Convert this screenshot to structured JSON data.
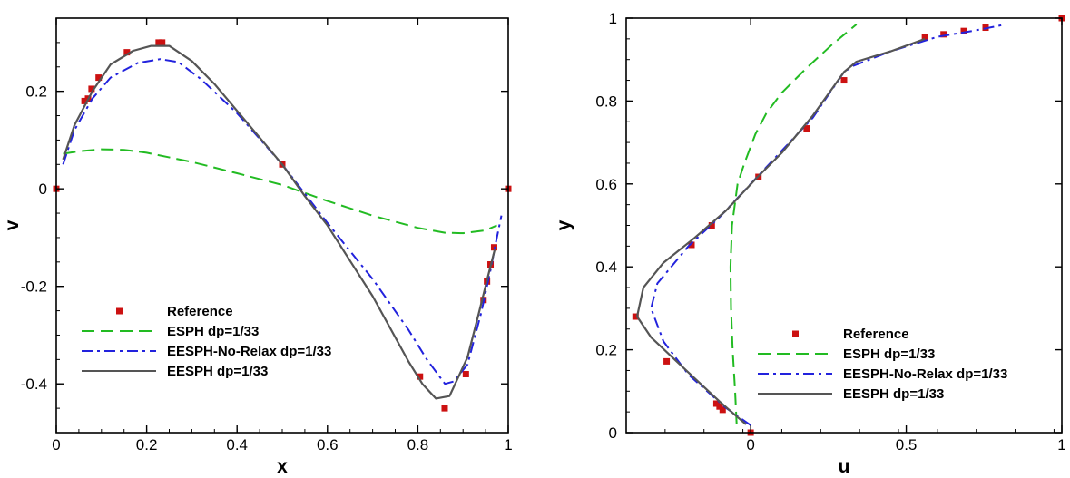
{
  "chart_data": [
    {
      "type": "line",
      "xlabel": "x",
      "ylabel": "v",
      "xlim": [
        0,
        1
      ],
      "ylim": [
        -0.5,
        0.35
      ],
      "xticks": [
        0,
        0.2,
        0.4,
        0.6,
        0.8,
        1
      ],
      "xtick_labels": [
        "0",
        "0.2",
        "0.4",
        "0.6",
        "0.8",
        "1"
      ],
      "yticks": [
        -0.4,
        -0.2,
        0,
        0.2
      ],
      "ytick_labels": [
        "-0.4",
        "-0.2",
        "0",
        "0.2"
      ],
      "legend_position": "bottom-left",
      "series": [
        {
          "name": "Reference",
          "style": "markers",
          "color": "#cc1111",
          "points": [
            [
              0,
              0
            ],
            [
              0.0625,
              0.18
            ],
            [
              0.0703,
              0.185
            ],
            [
              0.0781,
              0.205
            ],
            [
              0.0938,
              0.228
            ],
            [
              0.1563,
              0.28
            ],
            [
              0.2266,
              0.3
            ],
            [
              0.2344,
              0.3
            ],
            [
              0.5,
              0.05
            ],
            [
              0.8047,
              -0.385
            ],
            [
              0.8594,
              -0.45
            ],
            [
              0.9063,
              -0.38
            ],
            [
              0.9453,
              -0.228
            ],
            [
              0.9531,
              -0.19
            ],
            [
              0.9609,
              -0.155
            ],
            [
              0.9688,
              -0.12
            ],
            [
              1,
              0
            ]
          ]
        },
        {
          "name": "ESPH dp=1/33",
          "style": "dashed",
          "color": "#22bb22",
          "points": [
            [
              0.015,
              0.072
            ],
            [
              0.05,
              0.077
            ],
            [
              0.1,
              0.081
            ],
            [
              0.15,
              0.08
            ],
            [
              0.2,
              0.074
            ],
            [
              0.3,
              0.055
            ],
            [
              0.4,
              0.032
            ],
            [
              0.5,
              0.008
            ],
            [
              0.6,
              -0.025
            ],
            [
              0.7,
              -0.055
            ],
            [
              0.8,
              -0.08
            ],
            [
              0.86,
              -0.09
            ],
            [
              0.9,
              -0.091
            ],
            [
              0.95,
              -0.085
            ],
            [
              0.975,
              -0.075
            ]
          ]
        },
        {
          "name": "EESPH-No-Relax dp=1/33",
          "style": "dashdot",
          "color": "#2222dd",
          "points": [
            [
              0.015,
              0.05
            ],
            [
              0.04,
              0.12
            ],
            [
              0.08,
              0.185
            ],
            [
              0.12,
              0.228
            ],
            [
              0.18,
              0.258
            ],
            [
              0.23,
              0.266
            ],
            [
              0.27,
              0.26
            ],
            [
              0.32,
              0.225
            ],
            [
              0.4,
              0.155
            ],
            [
              0.5,
              0.05
            ],
            [
              0.55,
              -0.01
            ],
            [
              0.6,
              -0.07
            ],
            [
              0.7,
              -0.185
            ],
            [
              0.78,
              -0.29
            ],
            [
              0.82,
              -0.35
            ],
            [
              0.86,
              -0.4
            ],
            [
              0.88,
              -0.395
            ],
            [
              0.91,
              -0.36
            ],
            [
              0.94,
              -0.255
            ],
            [
              0.96,
              -0.17
            ],
            [
              0.975,
              -0.1
            ],
            [
              0.985,
              -0.055
            ]
          ]
        },
        {
          "name": "EESPH dp=1/33",
          "style": "solid",
          "color": "#555555",
          "points": [
            [
              0.015,
              0.06
            ],
            [
              0.04,
              0.13
            ],
            [
              0.08,
              0.2
            ],
            [
              0.12,
              0.255
            ],
            [
              0.17,
              0.283
            ],
            [
              0.21,
              0.293
            ],
            [
              0.25,
              0.293
            ],
            [
              0.3,
              0.262
            ],
            [
              0.35,
              0.215
            ],
            [
              0.4,
              0.16
            ],
            [
              0.45,
              0.105
            ],
            [
              0.5,
              0.05
            ],
            [
              0.55,
              -0.015
            ],
            [
              0.6,
              -0.075
            ],
            [
              0.7,
              -0.22
            ],
            [
              0.78,
              -0.355
            ],
            [
              0.81,
              -0.4
            ],
            [
              0.84,
              -0.43
            ],
            [
              0.87,
              -0.425
            ],
            [
              0.91,
              -0.345
            ],
            [
              0.935,
              -0.255
            ],
            [
              0.955,
              -0.18
            ],
            [
              0.97,
              -0.125
            ]
          ]
        }
      ]
    },
    {
      "type": "line",
      "xlabel": "u",
      "ylabel": "y",
      "xlim": [
        -0.4,
        1
      ],
      "ylim": [
        0,
        1
      ],
      "xticks": [
        0,
        0.5,
        1
      ],
      "xtick_labels": [
        "0",
        "0.5",
        "1"
      ],
      "yticks": [
        0,
        0.2,
        0.4,
        0.6,
        0.8,
        1
      ],
      "ytick_labels": [
        "0",
        "0.2",
        "0.4",
        "0.6",
        "0.8",
        "1"
      ],
      "legend_position": "bottom-right",
      "series": [
        {
          "name": "Reference",
          "style": "markers",
          "color": "#cc1111",
          "points": [
            [
              0,
              0
            ],
            [
              -0.09,
              0.055
            ],
            [
              -0.1,
              0.063
            ],
            [
              -0.11,
              0.07
            ],
            [
              -0.27,
              0.172
            ],
            [
              -0.37,
              0.28
            ],
            [
              -0.19,
              0.453
            ],
            [
              -0.125,
              0.5
            ],
            [
              0.025,
              0.617
            ],
            [
              0.18,
              0.734
            ],
            [
              0.3,
              0.85
            ],
            [
              0.56,
              0.953
            ],
            [
              0.62,
              0.961
            ],
            [
              0.685,
              0.969
            ],
            [
              0.755,
              0.977
            ],
            [
              1,
              1
            ]
          ]
        },
        {
          "name": "ESPH dp=1/33",
          "style": "dashed",
          "color": "#22bb22",
          "points": [
            [
              -0.045,
              0.02
            ],
            [
              -0.05,
              0.1
            ],
            [
              -0.058,
              0.2
            ],
            [
              -0.063,
              0.3
            ],
            [
              -0.065,
              0.4
            ],
            [
              -0.06,
              0.5
            ],
            [
              -0.042,
              0.6
            ],
            [
              -0.02,
              0.65
            ],
            [
              0.015,
              0.72
            ],
            [
              0.05,
              0.77
            ],
            [
              0.1,
              0.82
            ],
            [
              0.18,
              0.88
            ],
            [
              0.26,
              0.935
            ],
            [
              0.34,
              0.985
            ]
          ]
        },
        {
          "name": "EESPH-No-Relax dp=1/33",
          "style": "dashdot",
          "color": "#2222dd",
          "points": [
            [
              0.0,
              0.018
            ],
            [
              -0.08,
              0.06
            ],
            [
              -0.2,
              0.14
            ],
            [
              -0.28,
              0.22
            ],
            [
              -0.32,
              0.3
            ],
            [
              -0.3,
              0.36
            ],
            [
              -0.2,
              0.45
            ],
            [
              -0.1,
              0.52
            ],
            [
              0.0,
              0.6
            ],
            [
              0.1,
              0.68
            ],
            [
              0.2,
              0.76
            ],
            [
              0.3,
              0.87
            ],
            [
              0.33,
              0.885
            ],
            [
              0.45,
              0.92
            ],
            [
              0.6,
              0.955
            ],
            [
              0.72,
              0.97
            ],
            [
              0.82,
              0.985
            ]
          ]
        },
        {
          "name": "EESPH dp=1/33",
          "style": "solid",
          "color": "#555555",
          "points": [
            [
              -0.015,
              0.02
            ],
            [
              -0.1,
              0.075
            ],
            [
              -0.2,
              0.145
            ],
            [
              -0.32,
              0.23
            ],
            [
              -0.365,
              0.28
            ],
            [
              -0.345,
              0.35
            ],
            [
              -0.28,
              0.41
            ],
            [
              -0.18,
              0.47
            ],
            [
              -0.08,
              0.535
            ],
            [
              0.02,
              0.615
            ],
            [
              0.1,
              0.675
            ],
            [
              0.2,
              0.765
            ],
            [
              0.3,
              0.87
            ],
            [
              0.34,
              0.895
            ],
            [
              0.45,
              0.92
            ],
            [
              0.56,
              0.95
            ]
          ]
        }
      ]
    }
  ]
}
